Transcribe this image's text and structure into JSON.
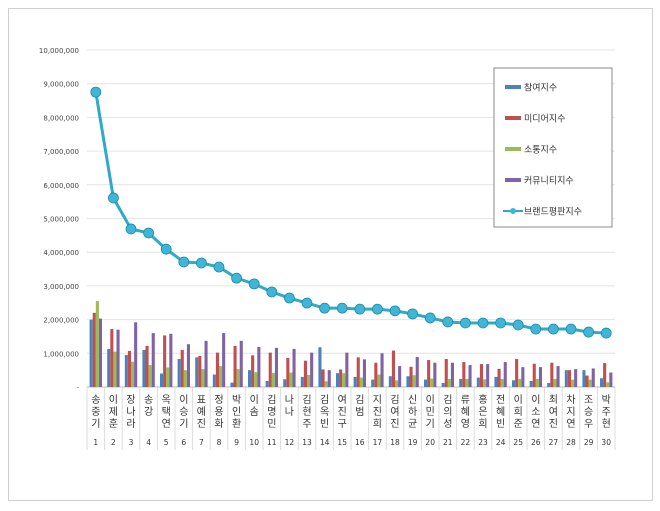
{
  "chart_data": {
    "type": "bar+line",
    "categories": [
      "송중기",
      "이제훈",
      "장나라",
      "송강",
      "옥택연",
      "이승기",
      "표예진",
      "정용화",
      "박인환",
      "이솜",
      "김명민",
      "나나",
      "김현주",
      "김옥빈",
      "여진구",
      "김범",
      "지진희",
      "김여진",
      "신하균",
      "이민기",
      "김의성",
      "류혜영",
      "홍은희",
      "전혜빈",
      "이희준",
      "이소연",
      "최여진",
      "차지연",
      "조승우",
      "박주현"
    ],
    "ranks": [
      "1",
      "2",
      "3",
      "4",
      "5",
      "6",
      "7",
      "8",
      "9",
      "10",
      "11",
      "12",
      "13",
      "14",
      "15",
      "16",
      "17",
      "18",
      "19",
      "20",
      "21",
      "22",
      "23",
      "24",
      "25",
      "26",
      "27",
      "28",
      "29",
      "30"
    ],
    "ylim": [
      0,
      10000000
    ],
    "yticks": [
      "-",
      "1,000,000",
      "2,000,000",
      "3,000,000",
      "4,000,000",
      "5,000,000",
      "6,000,000",
      "7,000,000",
      "8,000,000",
      "9,000,000",
      "10,000,000"
    ],
    "grid": true,
    "legend_position": "top-right",
    "series": [
      {
        "name": "참여지수",
        "type": "bar",
        "color": "#4f81bd",
        "values": [
          2000000,
          1130000,
          950000,
          1100000,
          400000,
          830000,
          880000,
          370000,
          130000,
          500000,
          180000,
          230000,
          300000,
          1180000,
          410000,
          300000,
          220000,
          320000,
          320000,
          220000,
          120000,
          240000,
          280000,
          300000,
          200000,
          180000,
          120000,
          500000,
          500000,
          260000
        ]
      },
      {
        "name": "미디어지수",
        "type": "bar",
        "color": "#c0504d",
        "values": [
          2200000,
          1720000,
          1070000,
          1220000,
          1530000,
          1100000,
          920000,
          1020000,
          1220000,
          940000,
          1020000,
          860000,
          780000,
          520000,
          520000,
          880000,
          720000,
          1080000,
          600000,
          800000,
          830000,
          740000,
          680000,
          540000,
          830000,
          690000,
          720000,
          500000,
          340000,
          710000
        ]
      },
      {
        "name": "소통지수",
        "type": "bar",
        "color": "#9bbb59",
        "values": [
          2550000,
          1050000,
          750000,
          650000,
          580000,
          500000,
          530000,
          620000,
          530000,
          440000,
          420000,
          430000,
          360000,
          170000,
          410000,
          280000,
          370000,
          200000,
          350000,
          250000,
          240000,
          240000,
          230000,
          240000,
          240000,
          240000,
          240000,
          220000,
          220000,
          140000
        ]
      },
      {
        "name": "커뮤니티지수",
        "type": "bar",
        "color": "#8064a2",
        "values": [
          2030000,
          1700000,
          1920000,
          1600000,
          1580000,
          1270000,
          1370000,
          1600000,
          1370000,
          1190000,
          1160000,
          1130000,
          1020000,
          500000,
          1020000,
          820000,
          1000000,
          620000,
          890000,
          720000,
          720000,
          650000,
          680000,
          740000,
          590000,
          590000,
          620000,
          530000,
          550000,
          430000
        ]
      },
      {
        "name": "브랜드평판지수",
        "type": "line",
        "color": "#31a9c8",
        "values": [
          8750000,
          5610000,
          4690000,
          4570000,
          4090000,
          3710000,
          3680000,
          3560000,
          3230000,
          3060000,
          2820000,
          2640000,
          2490000,
          2340000,
          2340000,
          2310000,
          2310000,
          2260000,
          2170000,
          2050000,
          1930000,
          1900000,
          1900000,
          1900000,
          1840000,
          1720000,
          1720000,
          1720000,
          1630000,
          1600000
        ]
      }
    ]
  }
}
